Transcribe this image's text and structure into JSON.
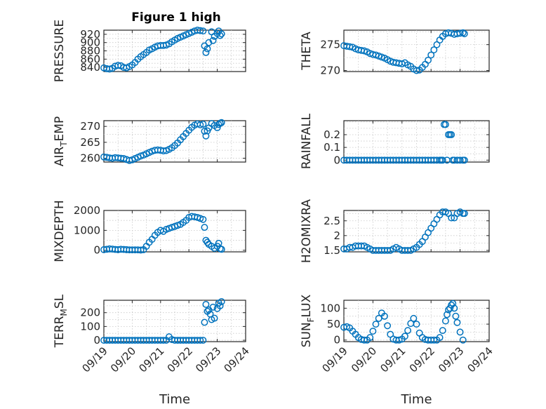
{
  "figure": {
    "title": "Figure 1 high"
  },
  "x_ticks": [
    "09/19",
    "09/20",
    "09/21",
    "09/22",
    "09/23",
    "09/24"
  ],
  "xlabel": "Time",
  "marker_color": "#0072BD",
  "chart_data": [
    {
      "type": "scatter",
      "ylabel": "PRESSURE",
      "ylim": [
        830,
        930
      ],
      "yticks": [
        840,
        860,
        880,
        900,
        920
      ],
      "xlim": [
        0,
        5
      ],
      "grid": true,
      "x": [
        0.0,
        0.1,
        0.2,
        0.3,
        0.4,
        0.5,
        0.6,
        0.7,
        0.8,
        0.9,
        1.0,
        1.1,
        1.2,
        1.3,
        1.4,
        1.5,
        1.6,
        1.7,
        1.8,
        1.9,
        2.0,
        2.1,
        2.2,
        2.3,
        2.4,
        2.5,
        2.6,
        2.7,
        2.8,
        2.9,
        3.0,
        3.1,
        3.2,
        3.3,
        3.4,
        3.5,
        3.55,
        3.6,
        3.65,
        3.7,
        3.8,
        3.85,
        3.9,
        4.0,
        4.05,
        4.1,
        4.15
      ],
      "y": [
        839,
        837,
        836,
        838,
        843,
        845,
        844,
        840,
        839,
        842,
        846,
        852,
        860,
        866,
        871,
        876,
        882,
        885,
        889,
        892,
        893,
        893,
        894,
        897,
        902,
        906,
        910,
        913,
        916,
        919,
        922,
        925,
        928,
        930,
        929,
        928,
        892,
        876,
        885,
        900,
        926,
        905,
        915,
        922,
        928,
        917,
        921
      ]
    },
    {
      "type": "scatter",
      "ylabel": "THETA",
      "ylim": [
        269.8,
        277.8
      ],
      "yticks": [
        270,
        275
      ],
      "xlim": [
        0,
        5
      ],
      "grid": true,
      "x": [
        0.0,
        0.1,
        0.2,
        0.3,
        0.4,
        0.5,
        0.6,
        0.7,
        0.8,
        0.9,
        1.0,
        1.1,
        1.2,
        1.3,
        1.4,
        1.5,
        1.6,
        1.7,
        1.8,
        1.9,
        2.0,
        2.1,
        2.2,
        2.3,
        2.4,
        2.5,
        2.6,
        2.7,
        2.8,
        2.9,
        3.0,
        3.1,
        3.2,
        3.3,
        3.4,
        3.5,
        3.6,
        3.7,
        3.8,
        3.9,
        4.0,
        4.1,
        4.15
      ],
      "y": [
        274.8,
        274.7,
        274.6,
        274.5,
        274.2,
        274.0,
        273.9,
        273.8,
        273.6,
        273.3,
        273.1,
        273.0,
        272.8,
        272.6,
        272.4,
        272.1,
        271.8,
        271.6,
        271.5,
        271.4,
        271.3,
        271.5,
        271.1,
        270.8,
        270.3,
        270.0,
        270.1,
        270.6,
        271.2,
        272.0,
        273.0,
        274.0,
        275.0,
        275.9,
        276.6,
        277.1,
        277.3,
        277.2,
        277.0,
        277.1,
        277.2,
        277.3,
        277.1
      ]
    },
    {
      "type": "scatter",
      "ylabel": "AIR_TEMP",
      "ylim": [
        258.8,
        271.8
      ],
      "yticks": [
        260,
        265,
        270
      ],
      "xlim": [
        0,
        5
      ],
      "grid": true,
      "x": [
        0.0,
        0.1,
        0.2,
        0.3,
        0.4,
        0.5,
        0.6,
        0.7,
        0.8,
        0.9,
        1.0,
        1.1,
        1.2,
        1.3,
        1.4,
        1.5,
        1.6,
        1.7,
        1.8,
        1.9,
        2.0,
        2.1,
        2.2,
        2.3,
        2.4,
        2.5,
        2.6,
        2.7,
        2.8,
        2.9,
        3.0,
        3.1,
        3.2,
        3.3,
        3.4,
        3.5,
        3.55,
        3.6,
        3.65,
        3.7,
        3.8,
        3.9,
        4.0,
        4.05,
        4.1,
        4.15
      ],
      "y": [
        260.4,
        260.3,
        260.1,
        260.0,
        260.2,
        260.1,
        260.0,
        259.9,
        259.6,
        259.3,
        259.5,
        259.9,
        260.3,
        260.7,
        261.0,
        261.4,
        261.8,
        262.2,
        262.5,
        262.6,
        262.5,
        262.3,
        262.4,
        262.8,
        263.3,
        264.0,
        264.8,
        265.8,
        266.8,
        267.8,
        268.8,
        269.7,
        270.4,
        270.8,
        270.5,
        270.7,
        268.5,
        267.0,
        268.6,
        269.5,
        270.9,
        270.3,
        269.6,
        270.6,
        271.0,
        271.2
      ]
    },
    {
      "type": "scatter",
      "ylabel": "RAINFALL",
      "ylim": [
        -0.015,
        0.31
      ],
      "yticks": [
        0,
        0.1,
        0.2
      ],
      "xlim": [
        0,
        5
      ],
      "grid": true,
      "x": [
        0.0,
        0.1,
        0.2,
        0.3,
        0.4,
        0.5,
        0.6,
        0.7,
        0.8,
        0.9,
        1.0,
        1.1,
        1.2,
        1.3,
        1.4,
        1.5,
        1.6,
        1.7,
        1.8,
        1.9,
        2.0,
        2.1,
        2.2,
        2.3,
        2.4,
        2.5,
        2.6,
        2.7,
        2.8,
        2.9,
        3.0,
        3.1,
        3.2,
        3.3,
        3.35,
        3.4,
        3.45,
        3.5,
        3.55,
        3.6,
        3.65,
        3.7,
        3.75,
        3.8,
        3.9,
        4.0,
        4.1,
        4.15
      ],
      "y": [
        0,
        0,
        0,
        0,
        0,
        0,
        0,
        0,
        0,
        0,
        0,
        0,
        0,
        0,
        0,
        0,
        0,
        0,
        0,
        0,
        0,
        0,
        0,
        0,
        0,
        0,
        0,
        0,
        0,
        0,
        0,
        0,
        0,
        0,
        0,
        0,
        0.28,
        0.28,
        0,
        0.2,
        0.2,
        0.2,
        0,
        0,
        0,
        0,
        0,
        0
      ]
    },
    {
      "type": "scatter",
      "ylabel": "MIXDEPTH",
      "ylim": [
        -80,
        2000
      ],
      "yticks": [
        0,
        1000,
        2000
      ],
      "xlim": [
        0,
        5
      ],
      "grid": true,
      "x": [
        0.0,
        0.1,
        0.2,
        0.3,
        0.4,
        0.5,
        0.6,
        0.7,
        0.8,
        0.9,
        1.0,
        1.1,
        1.2,
        1.3,
        1.4,
        1.5,
        1.6,
        1.7,
        1.8,
        1.9,
        2.0,
        2.1,
        2.2,
        2.3,
        2.4,
        2.5,
        2.6,
        2.7,
        2.8,
        2.9,
        3.0,
        3.1,
        3.2,
        3.3,
        3.4,
        3.5,
        3.55,
        3.6,
        3.65,
        3.7,
        3.8,
        3.9,
        4.0,
        4.05,
        4.1,
        4.15
      ],
      "y": [
        30,
        50,
        70,
        60,
        40,
        30,
        50,
        40,
        30,
        20,
        20,
        20,
        20,
        10,
        30,
        200,
        400,
        550,
        750,
        900,
        1000,
        950,
        1050,
        1100,
        1150,
        1200,
        1250,
        1300,
        1400,
        1500,
        1650,
        1700,
        1680,
        1650,
        1600,
        1550,
        1150,
        500,
        400,
        300,
        200,
        100,
        200,
        350,
        80,
        50
      ]
    },
    {
      "type": "scatter",
      "ylabel": "H2OMIXRA",
      "ylim": [
        1.45,
        2.85
      ],
      "yticks": [
        1.5,
        2,
        2.5
      ],
      "xlim": [
        0,
        5
      ],
      "grid": true,
      "x": [
        0.0,
        0.1,
        0.2,
        0.3,
        0.4,
        0.5,
        0.6,
        0.7,
        0.8,
        0.9,
        1.0,
        1.1,
        1.2,
        1.3,
        1.4,
        1.5,
        1.6,
        1.7,
        1.8,
        1.9,
        2.0,
        2.1,
        2.2,
        2.3,
        2.4,
        2.5,
        2.6,
        2.7,
        2.8,
        2.9,
        3.0,
        3.1,
        3.2,
        3.3,
        3.4,
        3.5,
        3.6,
        3.7,
        3.8,
        3.9,
        4.0,
        4.1,
        4.15
      ],
      "y": [
        1.55,
        1.55,
        1.6,
        1.6,
        1.65,
        1.65,
        1.65,
        1.65,
        1.6,
        1.55,
        1.5,
        1.5,
        1.5,
        1.5,
        1.5,
        1.5,
        1.5,
        1.55,
        1.6,
        1.55,
        1.5,
        1.5,
        1.5,
        1.5,
        1.55,
        1.6,
        1.7,
        1.8,
        1.95,
        2.1,
        2.25,
        2.4,
        2.55,
        2.7,
        2.8,
        2.8,
        2.75,
        2.6,
        2.6,
        2.75,
        2.8,
        2.75,
        2.75
      ]
    },
    {
      "type": "scatter",
      "ylabel": "TERR_MSL",
      "ylim": [
        -10,
        290
      ],
      "yticks": [
        0,
        100,
        200
      ],
      "xlim": [
        0,
        5
      ],
      "grid": true,
      "x": [
        0.0,
        0.1,
        0.2,
        0.3,
        0.4,
        0.5,
        0.6,
        0.7,
        0.8,
        0.9,
        1.0,
        1.1,
        1.2,
        1.3,
        1.4,
        1.5,
        1.6,
        1.7,
        1.8,
        1.9,
        2.0,
        2.1,
        2.2,
        2.3,
        2.4,
        2.5,
        2.6,
        2.7,
        2.8,
        2.9,
        3.0,
        3.1,
        3.2,
        3.3,
        3.4,
        3.5,
        3.55,
        3.6,
        3.65,
        3.7,
        3.75,
        3.8,
        3.85,
        3.9,
        4.0,
        4.05,
        4.1,
        4.15
      ],
      "y": [
        0,
        0,
        0,
        0,
        0,
        0,
        0,
        0,
        0,
        0,
        0,
        0,
        0,
        0,
        0,
        0,
        0,
        0,
        0,
        0,
        0,
        0,
        0,
        25,
        5,
        0,
        0,
        0,
        0,
        0,
        0,
        0,
        0,
        0,
        0,
        0,
        130,
        260,
        210,
        220,
        190,
        150,
        240,
        160,
        230,
        270,
        250,
        280
      ]
    },
    {
      "type": "scatter",
      "ylabel": "SUN_FLUX",
      "ylim": [
        -5,
        125
      ],
      "yticks": [
        0,
        50,
        100
      ],
      "xlim": [
        0,
        5
      ],
      "grid": true,
      "x": [
        0.0,
        0.1,
        0.2,
        0.3,
        0.4,
        0.5,
        0.6,
        0.7,
        0.8,
        0.9,
        1.0,
        1.1,
        1.2,
        1.3,
        1.4,
        1.5,
        1.6,
        1.7,
        1.8,
        1.9,
        2.0,
        2.1,
        2.2,
        2.3,
        2.4,
        2.5,
        2.6,
        2.7,
        2.8,
        2.9,
        3.0,
        3.1,
        3.2,
        3.3,
        3.4,
        3.5,
        3.55,
        3.6,
        3.65,
        3.7,
        3.75,
        3.8,
        3.85,
        3.9,
        4.0,
        4.1
      ],
      "y": [
        40,
        42,
        38,
        28,
        18,
        8,
        2,
        0,
        0,
        8,
        28,
        50,
        68,
        85,
        75,
        45,
        18,
        3,
        0,
        0,
        3,
        12,
        30,
        52,
        68,
        50,
        22,
        8,
        2,
        0,
        0,
        0,
        0,
        8,
        30,
        60,
        80,
        95,
        100,
        110,
        115,
        100,
        75,
        55,
        25,
        0
      ]
    }
  ]
}
